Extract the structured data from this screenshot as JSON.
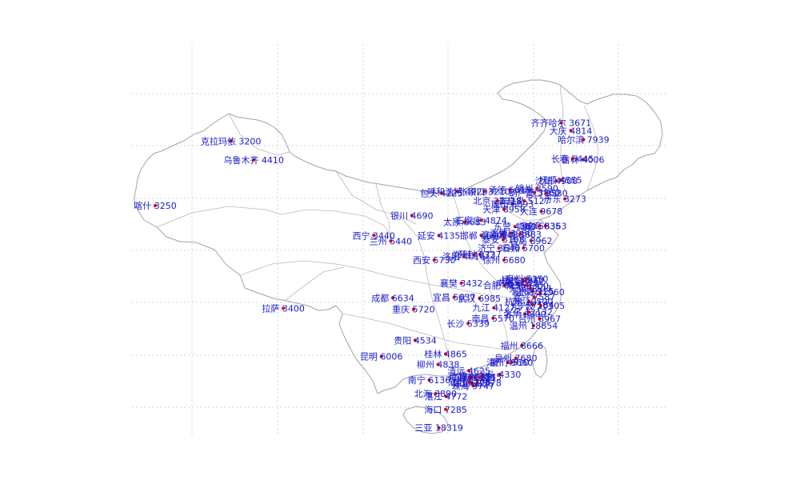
{
  "map": {
    "label_color": "#1a1acc",
    "dot_color": "#e00000",
    "cities": [
      {
        "name": "齐齐哈尔",
        "value": 3671,
        "lon": 123.95,
        "lat": 47.35
      },
      {
        "name": "大庆",
        "value": 4814,
        "lon": 125.1,
        "lat": 46.6
      },
      {
        "name": "哈尔滨",
        "value": 7939,
        "lon": 126.6,
        "lat": 45.75
      },
      {
        "name": "吉林",
        "value": 4006,
        "lon": 126.55,
        "lat": 43.85
      },
      {
        "name": "长春",
        "value": 5445,
        "lon": 125.3,
        "lat": 43.9
      },
      {
        "name": "锦州",
        "value": 3590,
        "lon": 121.1,
        "lat": 41.1
      },
      {
        "name": "沈阳",
        "value": 4900,
        "lon": 123.4,
        "lat": 41.8
      },
      {
        "name": "抚顺",
        "value": 4555,
        "lon": 123.9,
        "lat": 41.9
      },
      {
        "name": "营口",
        "value": 3580,
        "lon": 122.2,
        "lat": 40.65
      },
      {
        "name": "丹东",
        "value": 3273,
        "lon": 124.4,
        "lat": 40.1
      },
      {
        "name": "大连",
        "value": 9678,
        "lon": 121.6,
        "lat": 38.9
      },
      {
        "name": "承德",
        "value": 5015,
        "lon": 117.9,
        "lat": 40.95
      },
      {
        "name": "张家口",
        "value": 3210,
        "lon": 114.9,
        "lat": 40.8
      },
      {
        "name": "呼和浩特",
        "value": 4920,
        "lon": 111.7,
        "lat": 40.8
      },
      {
        "name": "包头",
        "value": 4225,
        "lon": 109.8,
        "lat": 40.65
      },
      {
        "name": "葫芦岛",
        "value": 3860,
        "lon": 120.8,
        "lat": 40.7
      },
      {
        "name": "唐山",
        "value": 6093,
        "lon": 118.2,
        "lat": 39.6
      },
      {
        "name": "北京",
        "value": 22318,
        "lon": 116.4,
        "lat": 39.9
      },
      {
        "name": "秦皇岛",
        "value": 5127,
        "lon": 119.6,
        "lat": 39.9
      },
      {
        "name": "天津",
        "value": 8958,
        "lon": 117.2,
        "lat": 39.1
      },
      {
        "name": "东营",
        "value": 4360,
        "lon": 118.5,
        "lat": 37.45
      },
      {
        "name": "威海",
        "value": 5363,
        "lon": 122.1,
        "lat": 37.5
      },
      {
        "name": "烟台",
        "value": 5835,
        "lon": 121.4,
        "lat": 37.5
      },
      {
        "name": "银川",
        "value": 4690,
        "lon": 106.3,
        "lat": 38.5
      },
      {
        "name": "太原",
        "value": 5683,
        "lon": 112.55,
        "lat": 37.87
      },
      {
        "name": "石家庄",
        "value": 4874,
        "lon": 114.5,
        "lat": 38.05
      },
      {
        "name": "济南",
        "value": 5480,
        "lon": 117.0,
        "lat": 36.65
      },
      {
        "name": "淄博",
        "value": 3980,
        "lon": 118.05,
        "lat": 36.8
      },
      {
        "name": "邯郸",
        "value": 4669,
        "lon": 114.5,
        "lat": 36.6
      },
      {
        "name": "泰安",
        "value": 5108,
        "lon": 117.1,
        "lat": 36.2
      },
      {
        "name": "潍坊",
        "value": 3883,
        "lon": 119.1,
        "lat": 36.7
      },
      {
        "name": "青岛",
        "value": 8962,
        "lon": 120.4,
        "lat": 36.1
      },
      {
        "name": "日照",
        "value": 5700,
        "lon": 119.5,
        "lat": 35.4
      },
      {
        "name": "西宁",
        "value": 3440,
        "lon": 101.8,
        "lat": 36.6
      },
      {
        "name": "延安",
        "value": 4135,
        "lon": 109.5,
        "lat": 36.6
      },
      {
        "name": "兰州",
        "value": 5440,
        "lon": 103.8,
        "lat": 36.05
      },
      {
        "name": "开封",
        "value": 3737,
        "lon": 114.35,
        "lat": 34.8
      },
      {
        "name": "西安",
        "value": 5730,
        "lon": 108.95,
        "lat": 34.25
      },
      {
        "name": "郑州",
        "value": 4632,
        "lon": 113.65,
        "lat": 34.75
      },
      {
        "name": "济宁",
        "value": 3640,
        "lon": 116.6,
        "lat": 35.4
      },
      {
        "name": "洛阳",
        "value": 4016,
        "lon": 112.45,
        "lat": 34.6
      },
      {
        "name": "徐州",
        "value": 5680,
        "lon": 117.2,
        "lat": 34.25
      },
      {
        "name": "南京",
        "value": 8015,
        "lon": 118.8,
        "lat": 32.05
      },
      {
        "name": "扬州",
        "value": 4930,
        "lon": 119.4,
        "lat": 32.4
      },
      {
        "name": "泰州",
        "value": 5350,
        "lon": 119.9,
        "lat": 32.45
      },
      {
        "name": "镇江",
        "value": 5052,
        "lon": 119.45,
        "lat": 32.2
      },
      {
        "name": "常州",
        "value": 5300,
        "lon": 119.95,
        "lat": 31.8
      },
      {
        "name": "襄樊",
        "value": 3432,
        "lon": 112.15,
        "lat": 32.05
      },
      {
        "name": "合肥",
        "value": 6235,
        "lon": 117.25,
        "lat": 31.85
      },
      {
        "name": "无锡",
        "value": 8103,
        "lon": 120.3,
        "lat": 31.55
      },
      {
        "name": "苏州",
        "value": 9125,
        "lon": 120.6,
        "lat": 31.3
      },
      {
        "name": "上海",
        "value": 21960,
        "lon": 121.5,
        "lat": 31.2
      },
      {
        "name": "宜昌",
        "value": 5637,
        "lon": 111.3,
        "lat": 30.7
      },
      {
        "name": "嘉兴",
        "value": 7587,
        "lon": 120.75,
        "lat": 30.75
      },
      {
        "name": "武汉",
        "value": 6985,
        "lon": 114.3,
        "lat": 30.6
      },
      {
        "name": "杭州",
        "value": 10500,
        "lon": 120.15,
        "lat": 30.3
      },
      {
        "name": "九江",
        "value": 4127,
        "lon": 116.0,
        "lat": 29.7
      },
      {
        "name": "绍兴",
        "value": 7584,
        "lon": 120.6,
        "lat": 30.0
      },
      {
        "name": "宁波",
        "value": 10105,
        "lon": 121.55,
        "lat": 29.9
      },
      {
        "name": "南昌",
        "value": 5570,
        "lon": 115.9,
        "lat": 28.7
      },
      {
        "name": "义乌",
        "value": 12132,
        "lon": 120.1,
        "lat": 29.3
      },
      {
        "name": "金华",
        "value": 6000,
        "lon": 119.65,
        "lat": 29.1
      },
      {
        "name": "长沙",
        "value": 5339,
        "lon": 112.95,
        "lat": 28.2
      },
      {
        "name": "温州",
        "value": 18854,
        "lon": 120.7,
        "lat": 28.0
      },
      {
        "name": "台州",
        "value": 8967,
        "lon": 121.4,
        "lat": 28.65
      },
      {
        "name": "成都",
        "value": 6634,
        "lon": 104.05,
        "lat": 30.65
      },
      {
        "name": "重庆",
        "value": 5720,
        "lon": 106.5,
        "lat": 29.55
      },
      {
        "name": "拉萨",
        "value": 3400,
        "lon": 91.1,
        "lat": 29.65
      },
      {
        "name": "福州",
        "value": 8666,
        "lon": 119.3,
        "lat": 26.1
      },
      {
        "name": "贵阳",
        "value": 4534,
        "lon": 106.7,
        "lat": 26.6
      },
      {
        "name": "桂林",
        "value": 4865,
        "lon": 110.3,
        "lat": 25.3
      },
      {
        "name": "泉州",
        "value": 7680,
        "lon": 118.6,
        "lat": 24.9
      },
      {
        "name": "漳州",
        "value": 4510,
        "lon": 117.65,
        "lat": 24.5
      },
      {
        "name": "厦门",
        "value": 9660,
        "lon": 118.1,
        "lat": 24.5
      },
      {
        "name": "昆明",
        "value": 6006,
        "lon": 102.7,
        "lat": 25.05
      },
      {
        "name": "柳州",
        "value": 4838,
        "lon": 109.4,
        "lat": 24.3
      },
      {
        "name": "清远",
        "value": 4625,
        "lon": 113.05,
        "lat": 23.7
      },
      {
        "name": "南宁",
        "value": 6136,
        "lon": 108.35,
        "lat": 22.8
      },
      {
        "name": "广州",
        "value": 9088,
        "lon": 113.25,
        "lat": 23.1
      },
      {
        "name": "佛山",
        "value": 7021,
        "lon": 113.1,
        "lat": 23.0
      },
      {
        "name": "东莞",
        "value": 7021,
        "lon": 113.75,
        "lat": 23.05
      },
      {
        "name": "汕头",
        "value": 4330,
        "lon": 116.7,
        "lat": 23.35
      },
      {
        "name": "惠州",
        "value": 7845,
        "lon": 114.4,
        "lat": 23.1
      },
      {
        "name": "深圳",
        "value": 22578,
        "lon": 114.05,
        "lat": 22.55
      },
      {
        "name": "中山",
        "value": 6236,
        "lon": 113.4,
        "lat": 22.5
      },
      {
        "name": "江门",
        "value": 5206,
        "lon": 113.1,
        "lat": 22.6
      },
      {
        "name": "珠海",
        "value": 9747,
        "lon": 113.55,
        "lat": 22.25
      },
      {
        "name": "北海",
        "value": 3890,
        "lon": 109.1,
        "lat": 21.5
      },
      {
        "name": "湛江",
        "value": 4772,
        "lon": 110.35,
        "lat": 21.25
      },
      {
        "name": "海口",
        "value": 7285,
        "lon": 110.3,
        "lat": 20.0
      },
      {
        "name": "三亚",
        "value": 18319,
        "lon": 109.5,
        "lat": 18.25
      },
      {
        "name": "克拉玛依",
        "value": 3200,
        "lon": 84.9,
        "lat": 45.6
      },
      {
        "name": "乌鲁木齐",
        "value": 4410,
        "lon": 87.6,
        "lat": 43.8
      },
      {
        "name": "喀什",
        "value": 3250,
        "lon": 75.95,
        "lat": 39.45
      }
    ]
  }
}
